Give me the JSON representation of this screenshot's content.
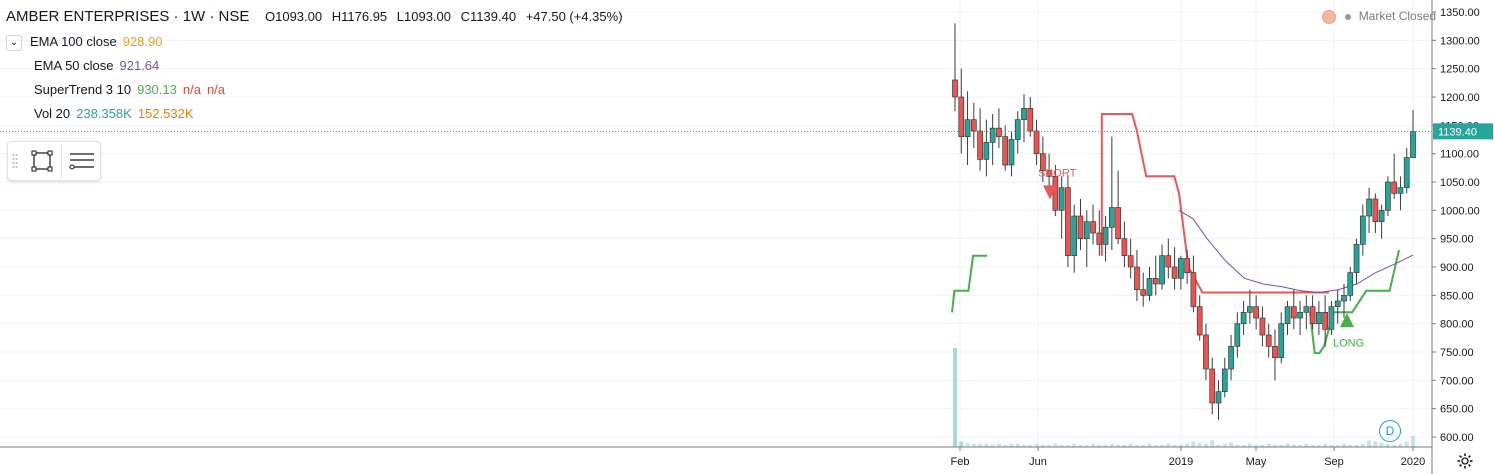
{
  "header": {
    "symbol": "AMBER ENTERPRISES · 1W · NSE",
    "open": "O1093.00",
    "high": "H1176.95",
    "low": "L1093.00",
    "close": "C1139.40",
    "change": "+47.50 (+4.35%)"
  },
  "indicators": [
    {
      "name": "EMA 100 close",
      "values": [
        "928.90"
      ],
      "colors": [
        "#e8a321"
      ]
    },
    {
      "name": "EMA 50 close",
      "values": [
        "921.64"
      ],
      "colors": [
        "#7b4fa8"
      ]
    },
    {
      "name": "SuperTrend 3 10",
      "values": [
        "930.13",
        "n/a",
        "n/a"
      ],
      "colors": [
        "#4caf50",
        "#f44336",
        "#f44336"
      ]
    },
    {
      "name": "Vol 20",
      "values": [
        "238.358K",
        "152.532K"
      ],
      "colors": [
        "#26a69a",
        "#f57c00"
      ]
    }
  ],
  "toolbox": {
    "icons": [
      "drag-handle-icon",
      "rectangle-tool-icon",
      "lines-menu-icon"
    ]
  },
  "market_status": "Market Closed",
  "badge": "D",
  "price_axis": {
    "ticks": [
      "1350.00",
      "1300.00",
      "1250.00",
      "1200.00",
      "1150.00",
      "1100.00",
      "1050.00",
      "1000.00",
      "950.00",
      "900.00",
      "850.00",
      "800.00",
      "750.00",
      "700.00",
      "650.00",
      "600.00"
    ],
    "last_price_label": "1139.40",
    "last_price": 1139.4
  },
  "time_axis": {
    "labels": [
      "Feb",
      "Jun",
      "2019",
      "May",
      "Sep",
      "2020"
    ]
  },
  "annotations": {
    "short": "SHORT",
    "long": "LONG"
  },
  "colors": {
    "up": "#26a69a",
    "down": "#ef5350",
    "candle_border": "#3a3a3a",
    "supertrend_up": "#43b049",
    "supertrend_down": "#f05555",
    "ema50": "#7b4fa8",
    "ema100": "#e8a321",
    "volume": "#9fd6d4",
    "grid": "#f0f3fa"
  },
  "chart_data": {
    "type": "candlestick",
    "ylim": [
      590,
      1360
    ],
    "candles": [
      [
        1230,
        1330,
        1175,
        1200
      ],
      [
        1200,
        1250,
        1100,
        1130
      ],
      [
        1130,
        1210,
        1080,
        1160
      ],
      [
        1160,
        1190,
        1110,
        1140
      ],
      [
        1140,
        1180,
        1070,
        1090
      ],
      [
        1090,
        1160,
        1060,
        1120
      ],
      [
        1120,
        1170,
        1080,
        1145
      ],
      [
        1145,
        1180,
        1110,
        1130
      ],
      [
        1130,
        1150,
        1070,
        1080
      ],
      [
        1080,
        1140,
        1060,
        1125
      ],
      [
        1125,
        1175,
        1100,
        1160
      ],
      [
        1160,
        1205,
        1120,
        1180
      ],
      [
        1180,
        1200,
        1130,
        1140
      ],
      [
        1140,
        1160,
        1080,
        1100
      ],
      [
        1100,
        1130,
        1050,
        1070
      ],
      [
        1070,
        1100,
        1040,
        1060
      ],
      [
        1060,
        1080,
        990,
        1000
      ],
      [
        1000,
        1060,
        950,
        1040
      ],
      [
        1040,
        1060,
        900,
        920
      ],
      [
        920,
        1010,
        890,
        990
      ],
      [
        990,
        1020,
        930,
        950
      ],
      [
        950,
        1000,
        900,
        980
      ],
      [
        980,
        1010,
        940,
        960
      ],
      [
        960,
        1000,
        920,
        940
      ],
      [
        940,
        990,
        910,
        970
      ],
      [
        970,
        1130,
        930,
        1005
      ],
      [
        1005,
        1070,
        940,
        950
      ],
      [
        950,
        980,
        900,
        920
      ],
      [
        920,
        950,
        880,
        900
      ],
      [
        900,
        930,
        840,
        860
      ],
      [
        860,
        890,
        830,
        850
      ],
      [
        850,
        900,
        840,
        880
      ],
      [
        880,
        920,
        850,
        870
      ],
      [
        870,
        940,
        860,
        920
      ],
      [
        920,
        950,
        880,
        900
      ],
      [
        900,
        935,
        860,
        880
      ],
      [
        880,
        920,
        860,
        915
      ],
      [
        915,
        930,
        870,
        890
      ],
      [
        890,
        920,
        820,
        830
      ],
      [
        830,
        850,
        770,
        780
      ],
      [
        780,
        800,
        700,
        720
      ],
      [
        720,
        740,
        640,
        660
      ],
      [
        660,
        700,
        630,
        680
      ],
      [
        680,
        740,
        670,
        720
      ],
      [
        720,
        780,
        700,
        760
      ],
      [
        760,
        820,
        740,
        800
      ],
      [
        800,
        840,
        780,
        820
      ],
      [
        820,
        860,
        800,
        830
      ],
      [
        830,
        850,
        790,
        810
      ],
      [
        810,
        830,
        760,
        780
      ],
      [
        780,
        800,
        740,
        760
      ],
      [
        760,
        790,
        700,
        740
      ],
      [
        740,
        820,
        730,
        800
      ],
      [
        800,
        840,
        780,
        830
      ],
      [
        830,
        860,
        790,
        810
      ],
      [
        810,
        840,
        780,
        820
      ],
      [
        820,
        850,
        790,
        830
      ],
      [
        830,
        850,
        790,
        800
      ],
      [
        800,
        840,
        780,
        820
      ],
      [
        820,
        850,
        760,
        790
      ],
      [
        790,
        840,
        780,
        830
      ],
      [
        830,
        860,
        800,
        840
      ],
      [
        840,
        870,
        810,
        850
      ],
      [
        850,
        900,
        840,
        890
      ],
      [
        890,
        950,
        870,
        940
      ],
      [
        940,
        1010,
        920,
        990
      ],
      [
        990,
        1040,
        960,
        1020
      ],
      [
        1020,
        1030,
        960,
        980
      ],
      [
        980,
        1010,
        950,
        1000
      ],
      [
        1000,
        1060,
        990,
        1050
      ],
      [
        1050,
        1100,
        1020,
        1030
      ],
      [
        1030,
        1060,
        1000,
        1040
      ],
      [
        1040,
        1110,
        1030,
        1093
      ],
      [
        1093,
        1177,
        1093,
        1139
      ]
    ],
    "ema50": [
      [
        0.5,
        1000
      ],
      [
        0.53,
        985
      ],
      [
        0.56,
        950
      ],
      [
        0.6,
        910
      ],
      [
        0.64,
        880
      ],
      [
        0.68,
        870
      ],
      [
        0.72,
        865
      ],
      [
        0.76,
        858
      ],
      [
        0.8,
        855
      ],
      [
        0.84,
        860
      ],
      [
        0.88,
        870
      ],
      [
        0.92,
        890
      ],
      [
        0.96,
        905
      ],
      [
        1.0,
        921
      ]
    ],
    "supertrend_down": [
      [
        0.335,
        920
      ],
      [
        0.335,
        1170
      ],
      [
        0.4,
        1170
      ],
      [
        0.41,
        1140
      ],
      [
        0.43,
        1060
      ],
      [
        0.49,
        1060
      ],
      [
        0.5,
        1030
      ],
      [
        0.52,
        900
      ],
      [
        0.55,
        855
      ],
      [
        0.82,
        855
      ]
    ],
    "supertrend_up": [
      [
        0.015,
        820
      ],
      [
        0.02,
        858
      ],
      [
        0.05,
        858
      ],
      [
        0.06,
        920
      ],
      [
        0.09,
        920
      ],
      [
        0.09,
        920
      ],
      [
        0.78,
        820
      ],
      [
        0.79,
        748
      ],
      [
        0.8,
        748
      ],
      [
        0.81,
        760
      ],
      [
        0.83,
        820
      ],
      [
        0.87,
        820
      ],
      [
        0.9,
        858
      ],
      [
        0.95,
        858
      ],
      [
        0.97,
        930
      ]
    ],
    "volume": [
      0.9,
      0.05,
      0.04,
      0.03,
      0.03,
      0.03,
      0.02,
      0.03,
      0.02,
      0.03,
      0.03,
      0.02,
      0.02,
      0.03,
      0.02,
      0.02,
      0.03,
      0.02,
      0.02,
      0.03,
      0.02,
      0.02,
      0.03,
      0.02,
      0.02,
      0.03,
      0.02,
      0.02,
      0.03,
      0.02,
      0.02,
      0.03,
      0.02,
      0.02,
      0.03,
      0.02,
      0.02,
      0.03,
      0.05,
      0.04,
      0.03,
      0.06,
      0.02,
      0.03,
      0.04,
      0.02,
      0.02,
      0.03,
      0.02,
      0.02,
      0.03,
      0.02,
      0.02,
      0.03,
      0.02,
      0.02,
      0.03,
      0.02,
      0.02,
      0.03,
      0.02,
      0.02,
      0.03,
      0.02,
      0.02,
      0.03,
      0.06,
      0.05,
      0.04,
      0.03,
      0.02,
      0.03,
      0.05,
      0.1
    ]
  }
}
